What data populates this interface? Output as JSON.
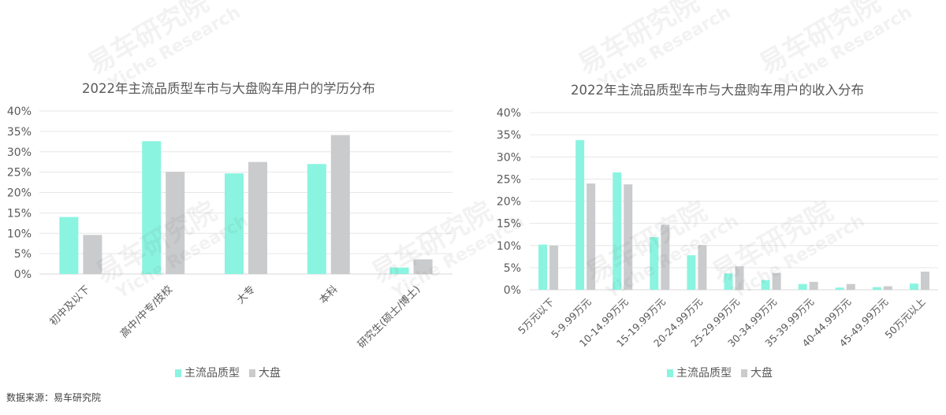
{
  "colors": {
    "primary": "#8af4e0",
    "secondary": "#cacbcd",
    "grid": "#e6e6e6",
    "text": "#595959"
  },
  "watermark": {
    "cn": "易车研究院",
    "en": "Yiche Research"
  },
  "source": "数据来源：易车研究院",
  "chart_data": [
    {
      "type": "bar",
      "title": "2022年主流品质型车市与大盘购车用户的学历分布",
      "xlabel": "",
      "ylabel": "",
      "ylim": [
        0,
        40
      ],
      "yticks": [
        "0%",
        "5%",
        "10%",
        "15%",
        "20%",
        "25%",
        "30%",
        "35%",
        "40%"
      ],
      "categories": [
        "初中及以下",
        "高中/中专/技校",
        "大专",
        "本科",
        "研究生(硕士/博士)"
      ],
      "series": [
        {
          "name": "主流品质型",
          "values": [
            14.0,
            32.6,
            24.7,
            27.0,
            1.6
          ]
        },
        {
          "name": "大盘",
          "values": [
            9.6,
            25.1,
            27.5,
            34.1,
            3.6
          ]
        }
      ],
      "grid": true,
      "legend": "bottom"
    },
    {
      "type": "bar",
      "title": "2022年主流品质型车市与大盘购车用户的收入分布",
      "xlabel": "",
      "ylabel": "",
      "ylim": [
        0,
        40
      ],
      "yticks": [
        "0%",
        "5%",
        "10%",
        "15%",
        "20%",
        "25%",
        "30%",
        "35%",
        "40%"
      ],
      "categories": [
        "5万元以下",
        "5-9.99万元",
        "10-14.99万元",
        "15-19.99万元",
        "20-24.99万元",
        "25-29.99万元",
        "30-34.99万元",
        "35-39.99万元",
        "40-44.99万元",
        "45-49.99万元",
        "50万元以上"
      ],
      "series": [
        {
          "name": "主流品质型",
          "values": [
            10.2,
            33.8,
            26.5,
            11.9,
            7.8,
            3.7,
            2.2,
            1.3,
            0.5,
            0.6,
            1.4
          ]
        },
        {
          "name": "大盘",
          "values": [
            10.0,
            24.0,
            23.8,
            14.7,
            10.1,
            5.3,
            3.8,
            1.8,
            1.3,
            0.8,
            4.1
          ]
        }
      ],
      "grid": true,
      "legend": "bottom"
    }
  ]
}
